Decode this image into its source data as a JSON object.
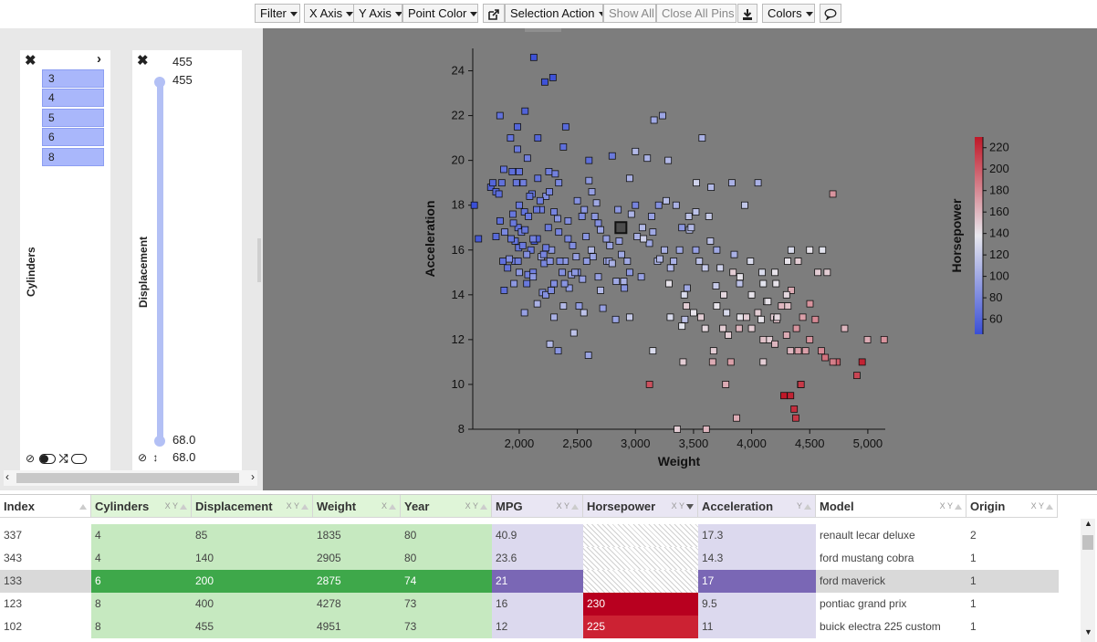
{
  "toolbar": {
    "filter": "Filter",
    "x_axis": "X Axis",
    "y_axis": "Y Axis",
    "point_color": "Point Color",
    "selection_action": "Selection Action",
    "show_all": "Show All",
    "close_all_pins": "Close All Pins",
    "colors": "Colors"
  },
  "filters": {
    "cylinders": {
      "label": "Cylinders",
      "values": [
        "3",
        "4",
        "5",
        "6",
        "8"
      ]
    },
    "displacement": {
      "label": "Displacement",
      "top_value": "455",
      "max_value": "455",
      "min_value": "68.0",
      "bottom_value": "68.0"
    }
  },
  "chart_data": {
    "type": "scatter",
    "xlabel": "Weight",
    "ylabel": "Acceleration",
    "xlim": [
      1600,
      5150
    ],
    "ylim": [
      8,
      25
    ],
    "x_ticks": [
      "2,000",
      "2,500",
      "3,000",
      "3,500",
      "4,000",
      "4,500",
      "5,000"
    ],
    "y_ticks": [
      "8",
      "10",
      "12",
      "14",
      "16",
      "18",
      "20",
      "22",
      "24"
    ],
    "colorbar": {
      "label": "Horsepower",
      "ticks": [
        "60",
        "80",
        "100",
        "120",
        "140",
        "160",
        "180",
        "200",
        "220"
      ],
      "range": [
        46,
        230
      ]
    },
    "points": [
      [
        1835,
        17.3,
        65
      ],
      [
        2905,
        14.3,
        88
      ],
      [
        2875,
        17,
        0
      ],
      [
        4278,
        9.5,
        230
      ],
      [
        4951,
        11,
        225
      ],
      [
        1613,
        18,
        46
      ],
      [
        1649,
        16.5,
        52
      ],
      [
        1755,
        18.8,
        58
      ],
      [
        1773,
        19,
        60
      ],
      [
        1800,
        18.6,
        62
      ],
      [
        1825,
        18.5,
        65
      ],
      [
        1834,
        22,
        67
      ],
      [
        1850,
        19,
        67
      ],
      [
        1867,
        19.6,
        68
      ],
      [
        1925,
        21,
        68
      ],
      [
        1945,
        17.6,
        70
      ],
      [
        1963,
        15.5,
        75
      ],
      [
        1965,
        16.4,
        68
      ],
      [
        1975,
        19,
        70
      ],
      [
        1985,
        20.5,
        72
      ],
      [
        1990,
        17,
        67
      ],
      [
        1995,
        16.1,
        70
      ],
      [
        2000,
        18,
        72
      ],
      [
        2019,
        16.8,
        75
      ],
      [
        2035,
        19,
        75
      ],
      [
        2045,
        17.7,
        68
      ],
      [
        2050,
        16.9,
        70
      ],
      [
        2065,
        14.5,
        71
      ],
      [
        2070,
        20.1,
        75
      ],
      [
        2075,
        14.9,
        76
      ],
      [
        2100,
        16,
        72
      ],
      [
        2110,
        18.5,
        70
      ],
      [
        2120,
        15,
        75
      ],
      [
        2125,
        24.6,
        48
      ],
      [
        2130,
        16.4,
        52
      ],
      [
        2155,
        16.5,
        60
      ],
      [
        2160,
        19.2,
        68
      ],
      [
        2190,
        17.8,
        75
      ],
      [
        2200,
        14.1,
        85
      ],
      [
        2215,
        15.4,
        80
      ],
      [
        2220,
        23.5,
        48
      ],
      [
        2228,
        14,
        85
      ],
      [
        2230,
        18.4,
        82
      ],
      [
        2255,
        19.5,
        75
      ],
      [
        2265,
        15.5,
        87
      ],
      [
        2278,
        16,
        90
      ],
      [
        2290,
        23.7,
        48
      ],
      [
        2300,
        14.5,
        84
      ],
      [
        2310,
        19.4,
        76
      ],
      [
        2330,
        17.4,
        88
      ],
      [
        2335,
        11.5,
        88
      ],
      [
        2370,
        15,
        85
      ],
      [
        2380,
        20.6,
        65
      ],
      [
        2395,
        15.5,
        90
      ],
      [
        2420,
        17.3,
        84
      ],
      [
        2430,
        14.3,
        92
      ],
      [
        2450,
        14.9,
        93
      ],
      [
        2490,
        15.7,
        95
      ],
      [
        2500,
        18.2,
        86
      ],
      [
        2515,
        13.5,
        92
      ],
      [
        2545,
        14.7,
        95
      ],
      [
        2560,
        17.8,
        90
      ],
      [
        2575,
        16.6,
        88
      ],
      [
        2595,
        11.3,
        97
      ],
      [
        2600,
        19.1,
        90
      ],
      [
        2625,
        18.6,
        94
      ],
      [
        2635,
        15.7,
        97
      ],
      [
        2665,
        18.1,
        100
      ],
      [
        2700,
        16.9,
        98
      ],
      [
        2720,
        13.4,
        95
      ],
      [
        2755,
        15.5,
        100
      ],
      [
        2774,
        15.5,
        98
      ],
      [
        2800,
        15.4,
        105
      ],
      [
        2830,
        12.9,
        97
      ],
      [
        2835,
        14.6,
        100
      ],
      [
        2860,
        16.4,
        95
      ],
      [
        2900,
        14.6,
        105
      ],
      [
        2930,
        15.5,
        100
      ],
      [
        2950,
        19.2,
        105
      ],
      [
        2965,
        17.6,
        107
      ],
      [
        3000,
        20.4,
        110
      ],
      [
        3015,
        16.6,
        105
      ],
      [
        3060,
        17,
        110
      ],
      [
        3102,
        20.1,
        106
      ],
      [
        3120,
        16.3,
        100
      ],
      [
        3160,
        21.8,
        100
      ],
      [
        3190,
        15.5,
        107
      ],
      [
        3210,
        15.6,
        110
      ],
      [
        3233,
        22,
        98
      ],
      [
        3265,
        18.2,
        112
      ],
      [
        3282,
        20,
        110
      ],
      [
        3302,
        15.2,
        110
      ],
      [
        3329,
        15.5,
        105
      ],
      [
        3380,
        16,
        100
      ],
      [
        3425,
        12.9,
        115
      ],
      [
        3445,
        14.3,
        100
      ],
      [
        3465,
        16.9,
        110
      ],
      [
        3520,
        17.7,
        115
      ],
      [
        3574,
        21,
        105
      ],
      [
        3600,
        15.2,
        120
      ],
      [
        3645,
        16.4,
        115
      ],
      [
        3651,
        18.8,
        110
      ],
      [
        3693,
        14.4,
        120
      ],
      [
        3730,
        15.2,
        125
      ],
      [
        3785,
        13.2,
        130
      ],
      [
        3830,
        19,
        105
      ],
      [
        3897,
        14.5,
        115
      ],
      [
        3940,
        18,
        118
      ],
      [
        4055,
        19,
        105
      ],
      [
        4082,
        12.9,
        140
      ],
      [
        4100,
        11,
        150
      ],
      [
        4129,
        13.7,
        140
      ],
      [
        4154,
        12,
        150
      ],
      [
        4190,
        13,
        150
      ],
      [
        4215,
        12.9,
        155
      ],
      [
        4257,
        13.5,
        160
      ],
      [
        4312,
        13.5,
        155
      ],
      [
        4341,
        14.2,
        165
      ],
      [
        4385,
        12.5,
        175
      ],
      [
        4422,
        10,
        180
      ],
      [
        4464,
        11.5,
        170
      ],
      [
        4502,
        13.6,
        175
      ],
      [
        4548,
        12.9,
        180
      ],
      [
        4633,
        11.2,
        190
      ],
      [
        4699,
        18.5,
        175
      ],
      [
        4735,
        11,
        200
      ],
      [
        4906,
        10.4,
        210
      ],
      [
        4997,
        12,
        165
      ],
      [
        5140,
        12,
        175
      ],
      [
        4335,
        9.5,
        225
      ],
      [
        4366,
        8.9,
        220
      ],
      [
        4380,
        8.5,
        215
      ],
      [
        4425,
        10,
        215
      ],
      [
        3672,
        11.5,
        150
      ],
      [
        3777,
        10,
        165
      ],
      [
        3870,
        8.5,
        165
      ],
      [
        3410,
        11,
        150
      ],
      [
        3360,
        8,
        150
      ],
      [
        3609,
        8,
        160
      ],
      [
        3121,
        10,
        205
      ],
      [
        3139,
        17.5,
        95
      ],
      [
        3288,
        14.5,
        140
      ],
      [
        3439,
        13.5,
        150
      ],
      [
        3563,
        13,
        150
      ],
      [
        3821,
        11,
        170
      ],
      [
        3664,
        11,
        165
      ],
      [
        3753,
        12.5,
        150
      ],
      [
        3892,
        12.5,
        160
      ],
      [
        4054,
        13.2,
        150
      ],
      [
        3955,
        13,
        150
      ],
      [
        4140,
        13.7,
        140
      ],
      [
        4220,
        13,
        145
      ],
      [
        4335,
        11.5,
        160
      ],
      [
        4440,
        13,
        170
      ],
      [
        4650,
        15,
        150
      ],
      [
        4610,
        16,
        135
      ],
      [
        4570,
        15,
        150
      ],
      [
        4340,
        16,
        130
      ],
      [
        4310,
        15.5,
        140
      ],
      [
        4210,
        14.5,
        140
      ],
      [
        4090,
        15,
        130
      ],
      [
        3840,
        15,
        150
      ],
      [
        3760,
        14,
        145
      ],
      [
        3900,
        14.8,
        140
      ],
      [
        3990,
        15.5,
        130
      ],
      [
        3525,
        19,
        125
      ],
      [
        3632,
        17.5,
        120
      ],
      [
        3459,
        17.5,
        115
      ],
      [
        3420,
        14,
        130
      ],
      [
        3150,
        11.5,
        130
      ],
      [
        3070,
        16.5,
        125
      ],
      [
        2950,
        13,
        120
      ],
      [
        2700,
        14.2,
        110
      ],
      [
        2620,
        16,
        110
      ],
      [
        2556,
        13.2,
        115
      ],
      [
        2470,
        12.3,
        115
      ],
      [
        2380,
        13.5,
        110
      ],
      [
        2300,
        13,
        105
      ],
      [
        2264,
        11.8,
        110
      ],
      [
        2190,
        15.7,
        100
      ],
      [
        2155,
        13.6,
        105
      ],
      [
        2120,
        14.8,
        90
      ],
      [
        2065,
        15.8,
        85
      ],
      [
        2045,
        13.2,
        95
      ],
      [
        2000,
        15,
        90
      ],
      [
        1955,
        14.5,
        90
      ],
      [
        1915,
        15.6,
        85
      ],
      [
        1875,
        16.8,
        80
      ],
      [
        1940,
        19.5,
        65
      ],
      [
        1985,
        21.5,
        60
      ],
      [
        2050,
        22.2,
        58
      ],
      [
        2160,
        21,
        60
      ],
      [
        2400,
        21.5,
        62
      ],
      [
        2600,
        20,
        65
      ],
      [
        2800,
        20.2,
        72
      ],
      [
        3000,
        18,
        78
      ],
      [
        3200,
        18,
        85
      ],
      [
        3400,
        17,
        90
      ],
      [
        3520,
        16,
        95
      ],
      [
        3700,
        16,
        100
      ],
      [
        3850,
        15.8,
        105
      ],
      [
        2500,
        15,
        85
      ],
      [
        2650,
        17.5,
        90
      ],
      [
        2750,
        16.5,
        95
      ],
      [
        2850,
        17.8,
        90
      ],
      [
        2950,
        15,
        90
      ],
      [
        3050,
        14.8,
        95
      ],
      [
        3150,
        16.8,
        100
      ],
      [
        3250,
        16,
        105
      ],
      [
        3350,
        18,
        105
      ],
      [
        3480,
        17,
        110
      ],
      [
        3550,
        15.5,
        115
      ],
      [
        2420,
        16.5,
        80
      ],
      [
        2340,
        16.8,
        78
      ],
      [
        2250,
        17,
        72
      ],
      [
        2230,
        16.1,
        72
      ],
      [
        2150,
        17.8,
        70
      ],
      [
        2090,
        18.4,
        68
      ],
      [
        2030,
        16.2,
        72
      ],
      [
        1990,
        15.5,
        74
      ],
      [
        2210,
        15.8,
        78
      ],
      [
        2275,
        14.2,
        82
      ],
      [
        2390,
        14.5,
        88
      ],
      [
        2480,
        15,
        90
      ],
      [
        2580,
        15.5,
        92
      ],
      [
        2680,
        14.8,
        95
      ],
      [
        2780,
        16.2,
        98
      ],
      [
        2880,
        15.8,
        100
      ],
      [
        2680,
        17.2,
        85
      ],
      [
        2540,
        17.5,
        82
      ],
      [
        2460,
        16.2,
        84
      ],
      [
        2350,
        15.5,
        82
      ],
      [
        2300,
        17.7,
        78
      ],
      [
        1800,
        16.6,
        62
      ],
      [
        1860,
        15.5,
        66
      ],
      [
        1870,
        14.2,
        66
      ],
      [
        1900,
        15.2,
        68
      ],
      [
        1930,
        16.5,
        70
      ],
      [
        1950,
        17.2,
        72
      ],
      [
        2000,
        19.5,
        68
      ],
      [
        2080,
        17.5,
        72
      ],
      [
        2120,
        16.5,
        76
      ],
      [
        2180,
        18.2,
        74
      ],
      [
        2260,
        18.6,
        78
      ],
      [
        2340,
        19,
        80
      ],
      [
        3900,
        13,
        140
      ],
      [
        4000,
        12.5,
        150
      ],
      [
        4100,
        12,
        155
      ],
      [
        4200,
        11.8,
        160
      ],
      [
        4300,
        12.2,
        165
      ],
      [
        4400,
        11.5,
        170
      ],
      [
        4500,
        12,
        175
      ],
      [
        4600,
        11.5,
        180
      ],
      [
        4700,
        11,
        185
      ],
      [
        4800,
        12.5,
        160
      ],
      [
        3800,
        12.2,
        150
      ],
      [
        3700,
        13.5,
        140
      ],
      [
        3600,
        12.5,
        145
      ],
      [
        3500,
        13.2,
        140
      ],
      [
        3400,
        12.6,
        135
      ],
      [
        3300,
        13,
        130
      ],
      [
        4000,
        14,
        140
      ],
      [
        4100,
        14.5,
        135
      ],
      [
        4200,
        15,
        140
      ],
      [
        4300,
        14,
        145
      ],
      [
        4400,
        15.5,
        150
      ],
      [
        4500,
        16,
        140
      ]
    ]
  },
  "table": {
    "columns": [
      {
        "label": "Index",
        "xy": "",
        "sort": "up"
      },
      {
        "label": "Cylinders",
        "xy": "X Y",
        "sort": "up"
      },
      {
        "label": "Displacement",
        "xy": "X Y",
        "sort": "up"
      },
      {
        "label": "Weight",
        "xy": "X",
        "sort": "up"
      },
      {
        "label": "Year",
        "xy": "X Y",
        "sort": "up"
      },
      {
        "label": "MPG",
        "xy": "X Y",
        "sort": "up"
      },
      {
        "label": "Horsepower",
        "xy": "X Y",
        "sort": "down"
      },
      {
        "label": "Acceleration",
        "xy": "Y",
        "sort": "up"
      },
      {
        "label": "Model",
        "xy": "X Y",
        "sort": "up"
      },
      {
        "label": "Origin",
        "xy": "X Y",
        "sort": "up"
      }
    ],
    "rows": [
      [
        "337",
        "4",
        "85",
        "1835",
        "80",
        "40.9",
        "",
        "17.3",
        "renault lecar deluxe",
        "2"
      ],
      [
        "343",
        "4",
        "140",
        "2905",
        "80",
        "23.6",
        "",
        "14.3",
        "ford mustang cobra",
        "1"
      ],
      [
        "133",
        "6",
        "200",
        "2875",
        "74",
        "21",
        "",
        "17",
        "ford maverick",
        "1"
      ],
      [
        "123",
        "8",
        "400",
        "4278",
        "73",
        "16",
        "230",
        "9.5",
        "pontiac grand prix",
        "1"
      ],
      [
        "102",
        "8",
        "455",
        "4951",
        "73",
        "12",
        "225",
        "11",
        "buick electra 225 custom",
        "1"
      ]
    ]
  }
}
